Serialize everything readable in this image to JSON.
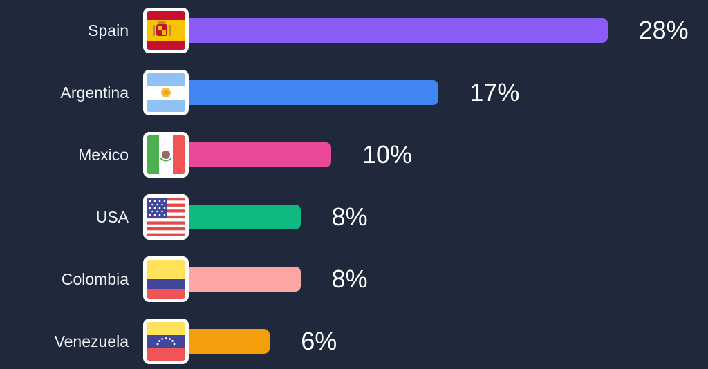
{
  "chart_data": {
    "type": "bar",
    "orientation": "horizontal",
    "categories": [
      "Spain",
      "Argentina",
      "Mexico",
      "USA",
      "Colombia",
      "Venezuela"
    ],
    "values": [
      28,
      17,
      10,
      8,
      8,
      6
    ],
    "value_labels": [
      "28%",
      "17%",
      "10%",
      "8%",
      "8%",
      "6%"
    ],
    "unit": "%",
    "bar_colors": [
      "#8b5cf6",
      "#4286f4",
      "#ec4899",
      "#10b981",
      "#fca5a5",
      "#f59e0b"
    ],
    "flag_icons": [
      "spain-flag-icon",
      "argentina-flag-icon",
      "mexico-flag-icon",
      "usa-flag-icon",
      "colombia-flag-icon",
      "venezuela-flag-icon"
    ],
    "grid": false,
    "legend": "none",
    "background": "#1f293b"
  }
}
